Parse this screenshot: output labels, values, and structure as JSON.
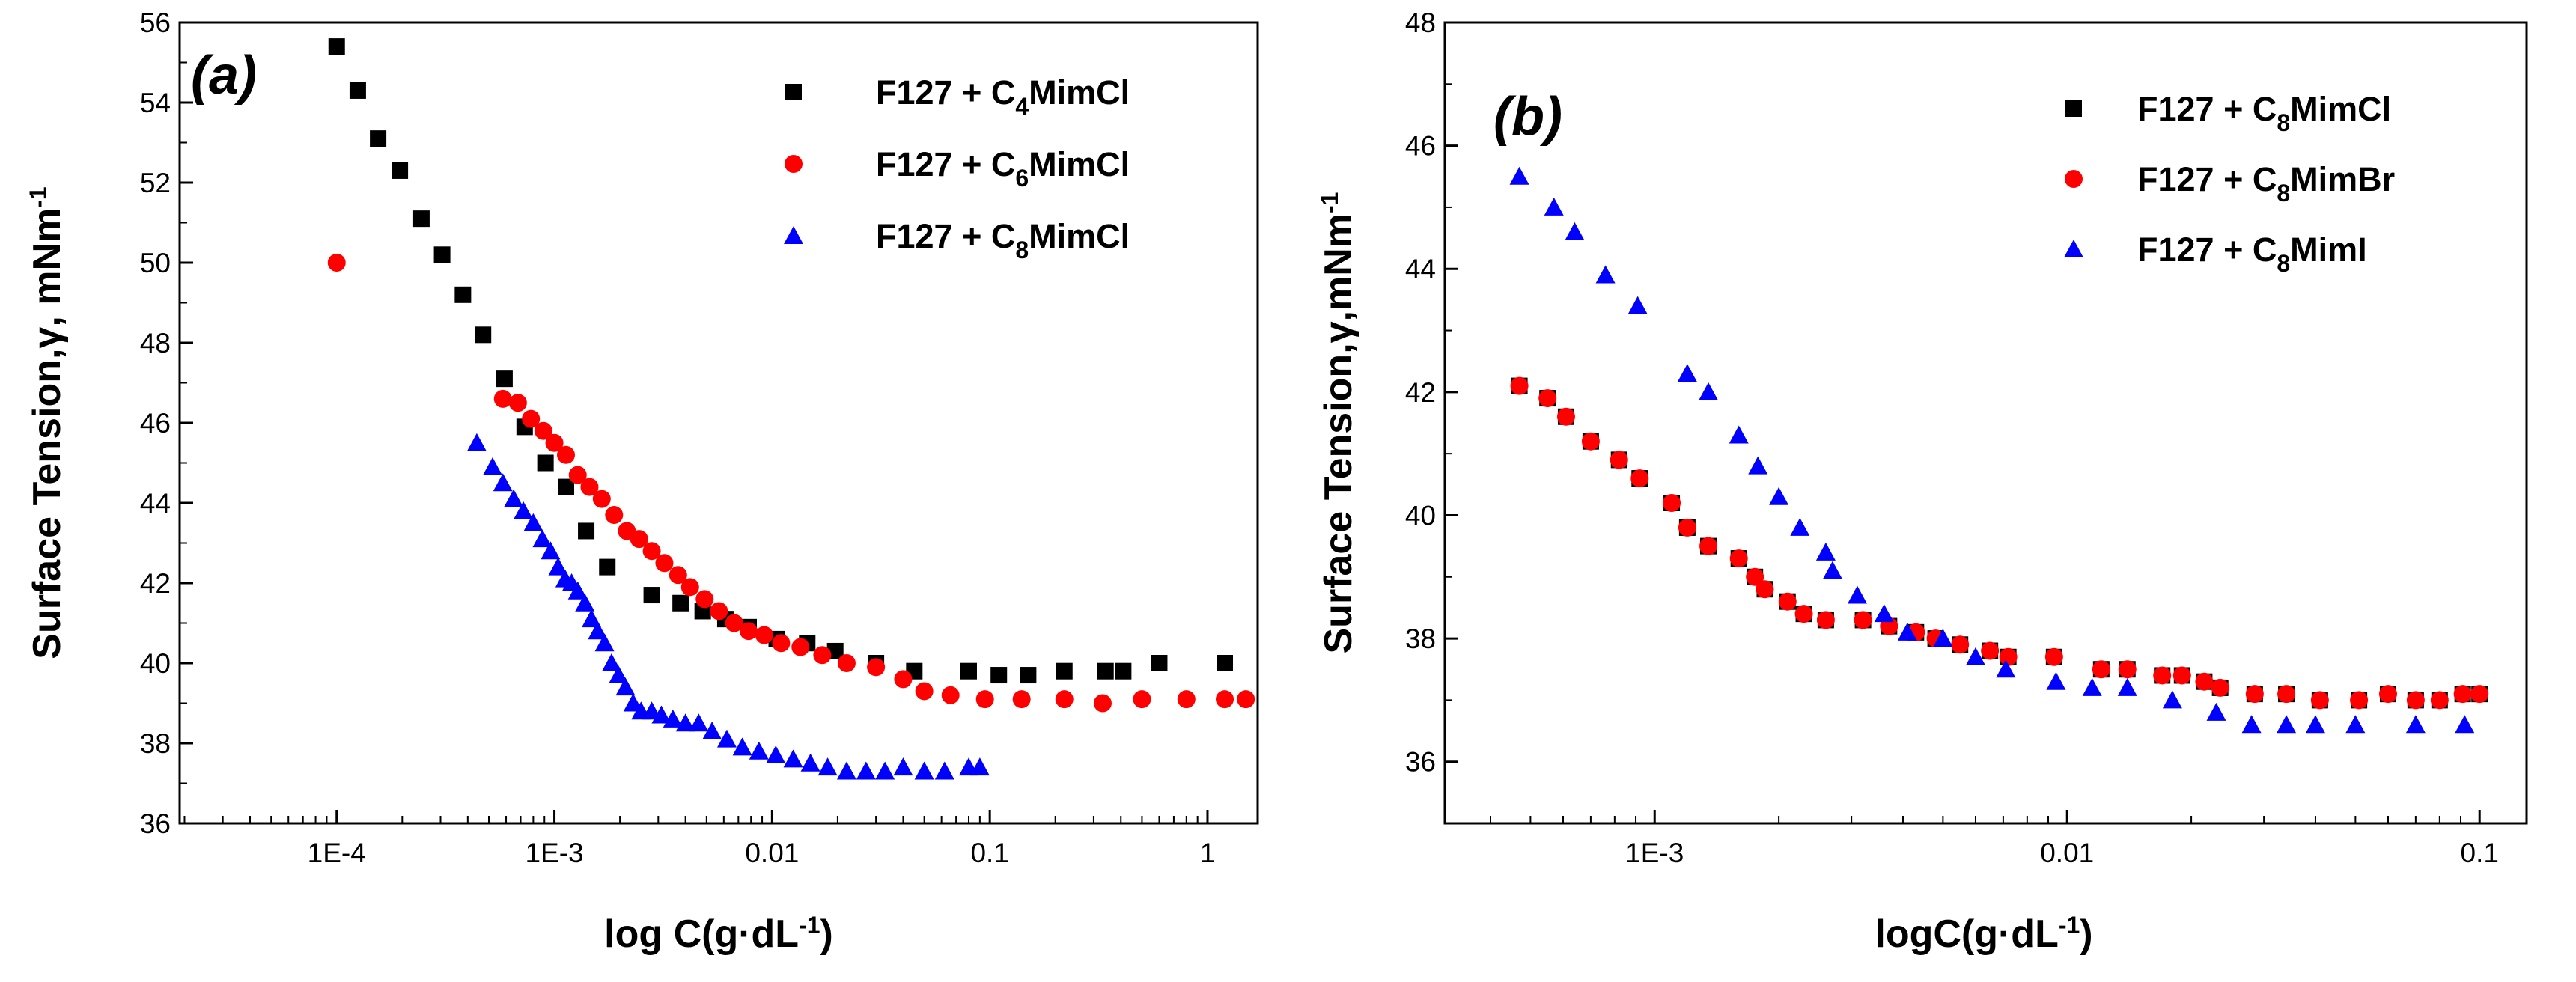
{
  "chart_data": [
    {
      "type": "scatter",
      "panel_label": "(a)",
      "xscale": "log",
      "xlabel": "log C(g·dL⁻¹)",
      "ylabel": "Surface Tension,γ, mNm⁻¹",
      "xlim": [
        1.9e-05,
        1.7
      ],
      "ylim": [
        36,
        56
      ],
      "xticks": [
        {
          "value": 0.0001,
          "label": "1E-4"
        },
        {
          "value": 0.001,
          "label": "1E-3"
        },
        {
          "value": 0.01,
          "label": "0.01"
        },
        {
          "value": 0.1,
          "label": "0.1"
        },
        {
          "value": 1,
          "label": "1"
        }
      ],
      "yticks": [
        {
          "value": 36,
          "label": "36"
        },
        {
          "value": 38,
          "label": "38"
        },
        {
          "value": 40,
          "label": "40"
        },
        {
          "value": 42,
          "label": "42"
        },
        {
          "value": 44,
          "label": "44"
        },
        {
          "value": 46,
          "label": "46"
        },
        {
          "value": 48,
          "label": "48"
        },
        {
          "value": 50,
          "label": "50"
        },
        {
          "value": 52,
          "label": "52"
        },
        {
          "value": 54,
          "label": "54"
        },
        {
          "value": 56,
          "label": "56"
        }
      ],
      "legend_position": "top-right",
      "series": [
        {
          "name": "F127 + C4MimCl",
          "legend_main": "F127 + C",
          "legend_sub": "4",
          "legend_tail": "MimCl",
          "marker": "square",
          "color": "#000000",
          "x": [
            0.0001,
            0.000125,
            0.000155,
            0.000195,
            0.000245,
            0.000305,
            0.00038,
            0.00047,
            0.00059,
            0.00073,
            0.00091,
            0.00113,
            0.0014,
            0.00175,
            0.0028,
            0.0038,
            0.0048,
            0.0061,
            0.0078,
            0.0105,
            0.0145,
            0.0195,
            0.03,
            0.045,
            0.08,
            0.11,
            0.15,
            0.22,
            0.34,
            0.41,
            0.6,
            1.2
          ],
          "y": [
            55.4,
            54.3,
            53.1,
            52.3,
            51.1,
            50.2,
            49.2,
            48.2,
            47.1,
            45.9,
            45.0,
            44.4,
            43.3,
            42.4,
            41.7,
            41.5,
            41.3,
            41.1,
            40.9,
            40.6,
            40.5,
            40.3,
            40.0,
            39.8,
            39.8,
            39.7,
            39.7,
            39.8,
            39.8,
            39.8,
            40.0,
            40.0
          ]
        },
        {
          "name": "F127 + C6MimCl",
          "legend_main": "F127 + C",
          "legend_sub": "6",
          "legend_tail": "MimCl",
          "marker": "circle",
          "color": "#ff0000",
          "x": [
            0.0001,
            0.00058,
            0.00068,
            0.00078,
            0.00089,
            0.001,
            0.00113,
            0.00128,
            0.00145,
            0.00165,
            0.00188,
            0.00215,
            0.00245,
            0.0028,
            0.0032,
            0.0037,
            0.0042,
            0.0049,
            0.0057,
            0.0067,
            0.0078,
            0.0092,
            0.011,
            0.0135,
            0.017,
            0.022,
            0.03,
            0.04,
            0.05,
            0.066,
            0.095,
            0.14,
            0.22,
            0.33,
            0.5,
            0.8,
            1.2,
            1.5
          ],
          "y": [
            50.0,
            46.6,
            46.5,
            46.1,
            45.8,
            45.5,
            45.2,
            44.7,
            44.4,
            44.1,
            43.7,
            43.3,
            43.1,
            42.8,
            42.5,
            42.2,
            41.9,
            41.6,
            41.3,
            41.0,
            40.8,
            40.7,
            40.5,
            40.4,
            40.2,
            40.0,
            39.9,
            39.6,
            39.3,
            39.2,
            39.1,
            39.1,
            39.1,
            39.0,
            39.1,
            39.1,
            39.1,
            39.1
          ]
        },
        {
          "name": "F127 + C8MimCl",
          "legend_main": "F127 + C",
          "legend_sub": "8",
          "legend_tail": "MimCl",
          "marker": "triangle",
          "color": "#0000ff",
          "x": [
            0.00044,
            0.00052,
            0.00058,
            0.00065,
            0.00072,
            0.0008,
            0.00088,
            0.00096,
            0.00104,
            0.00112,
            0.0012,
            0.00128,
            0.00138,
            0.00148,
            0.00158,
            0.0017,
            0.00183,
            0.00197,
            0.00212,
            0.0023,
            0.0025,
            0.0028,
            0.0031,
            0.0035,
            0.004,
            0.0046,
            0.0053,
            0.0062,
            0.0073,
            0.0087,
            0.0104,
            0.0125,
            0.015,
            0.018,
            0.022,
            0.027,
            0.033,
            0.04,
            0.05,
            0.062,
            0.08,
            0.09
          ],
          "y": [
            45.5,
            44.9,
            44.5,
            44.1,
            43.8,
            43.5,
            43.1,
            42.8,
            42.4,
            42.1,
            42.0,
            41.8,
            41.5,
            41.1,
            40.8,
            40.5,
            40.0,
            39.7,
            39.4,
            39.0,
            38.8,
            38.8,
            38.7,
            38.6,
            38.5,
            38.5,
            38.3,
            38.1,
            37.9,
            37.8,
            37.7,
            37.6,
            37.5,
            37.4,
            37.3,
            37.3,
            37.3,
            37.4,
            37.3,
            37.3,
            37.4,
            37.4
          ]
        }
      ]
    },
    {
      "type": "scatter",
      "panel_label": "(b)",
      "xscale": "log",
      "xlabel": "logC(g·dL⁻¹)",
      "ylabel": "Surface Tension,γ,mNm⁻¹",
      "xlim": [
        0.00031,
        0.13
      ],
      "ylim": [
        35,
        48
      ],
      "xticks": [
        {
          "value": 0.001,
          "label": "1E-3"
        },
        {
          "value": 0.01,
          "label": "0.01"
        },
        {
          "value": 0.1,
          "label": "0.1"
        }
      ],
      "yticks": [
        {
          "value": 36,
          "label": "36"
        },
        {
          "value": 38,
          "label": "38"
        },
        {
          "value": 40,
          "label": "40"
        },
        {
          "value": 42,
          "label": "42"
        },
        {
          "value": 44,
          "label": "44"
        },
        {
          "value": 46,
          "label": "46"
        },
        {
          "value": 48,
          "label": "48"
        }
      ],
      "legend_position": "top-right",
      "series": [
        {
          "name": "F127 + C8MimCl",
          "legend_main": "F127 + C",
          "legend_sub": "8",
          "legend_tail": "MimCl",
          "marker": "square",
          "color": "#000000",
          "x": [
            0.00047,
            0.00055,
            0.00061,
            0.0007,
            0.00082,
            0.00092,
            0.0011,
            0.0012,
            0.00135,
            0.0016,
            0.00175,
            0.00185,
            0.0021,
            0.0023,
            0.0026,
            0.0032,
            0.0037,
            0.0043,
            0.0048,
            0.0055,
            0.0065,
            0.0072,
            0.0093,
            0.0121,
            0.014,
            0.017,
            0.019,
            0.0215,
            0.0235,
            0.0285,
            0.034,
            0.041,
            0.051,
            0.06,
            0.07,
            0.08,
            0.091,
            0.1
          ],
          "y": [
            42.1,
            41.9,
            41.6,
            41.2,
            40.9,
            40.6,
            40.2,
            39.8,
            39.5,
            39.3,
            39.0,
            38.8,
            38.6,
            38.4,
            38.3,
            38.3,
            38.2,
            38.1,
            38.0,
            37.9,
            37.8,
            37.7,
            37.7,
            37.5,
            37.5,
            37.4,
            37.4,
            37.3,
            37.2,
            37.1,
            37.1,
            37.0,
            37.0,
            37.1,
            37.0,
            37.0,
            37.1,
            37.1
          ]
        },
        {
          "name": "F127 + C8MimBr",
          "legend_main": "F127 + C",
          "legend_sub": "8",
          "legend_tail": "MimBr",
          "marker": "circle",
          "color": "#ff0000",
          "x": [
            0.00047,
            0.00055,
            0.00061,
            0.0007,
            0.00082,
            0.00092,
            0.0011,
            0.0012,
            0.00135,
            0.0016,
            0.00175,
            0.00185,
            0.0021,
            0.0023,
            0.0026,
            0.0032,
            0.0037,
            0.0043,
            0.0048,
            0.0055,
            0.0065,
            0.0072,
            0.0093,
            0.0121,
            0.014,
            0.017,
            0.019,
            0.0215,
            0.0235,
            0.0285,
            0.034,
            0.041,
            0.051,
            0.06,
            0.07,
            0.08,
            0.091,
            0.1
          ],
          "y": [
            42.1,
            41.9,
            41.6,
            41.2,
            40.9,
            40.6,
            40.2,
            39.8,
            39.5,
            39.3,
            39.0,
            38.8,
            38.6,
            38.4,
            38.3,
            38.3,
            38.2,
            38.1,
            38.0,
            37.9,
            37.8,
            37.7,
            37.7,
            37.5,
            37.5,
            37.4,
            37.4,
            37.3,
            37.2,
            37.1,
            37.1,
            37.0,
            37.0,
            37.1,
            37.0,
            37.0,
            37.1,
            37.1
          ]
        },
        {
          "name": "F127 + C8MimI",
          "legend_main": "F127 + C",
          "legend_sub": "8",
          "legend_tail": "MimI",
          "marker": "triangle",
          "color": "#0000ff",
          "x": [
            0.00047,
            0.00057,
            0.00064,
            0.00076,
            0.00091,
            0.0012,
            0.00135,
            0.0016,
            0.00178,
            0.002,
            0.00225,
            0.0026,
            0.0027,
            0.0031,
            0.0036,
            0.0041,
            0.005,
            0.006,
            0.0071,
            0.0094,
            0.0115,
            0.014,
            0.018,
            0.023,
            0.028,
            0.034,
            0.04,
            0.05,
            0.07,
            0.092
          ],
          "y": [
            45.5,
            45.0,
            44.6,
            43.9,
            43.4,
            42.3,
            42.0,
            41.3,
            40.8,
            40.3,
            39.8,
            39.4,
            39.1,
            38.7,
            38.4,
            38.1,
            38.0,
            37.7,
            37.5,
            37.3,
            37.2,
            37.2,
            37.0,
            36.8,
            36.6,
            36.6,
            36.6,
            36.6,
            36.6,
            36.6
          ]
        }
      ]
    }
  ]
}
